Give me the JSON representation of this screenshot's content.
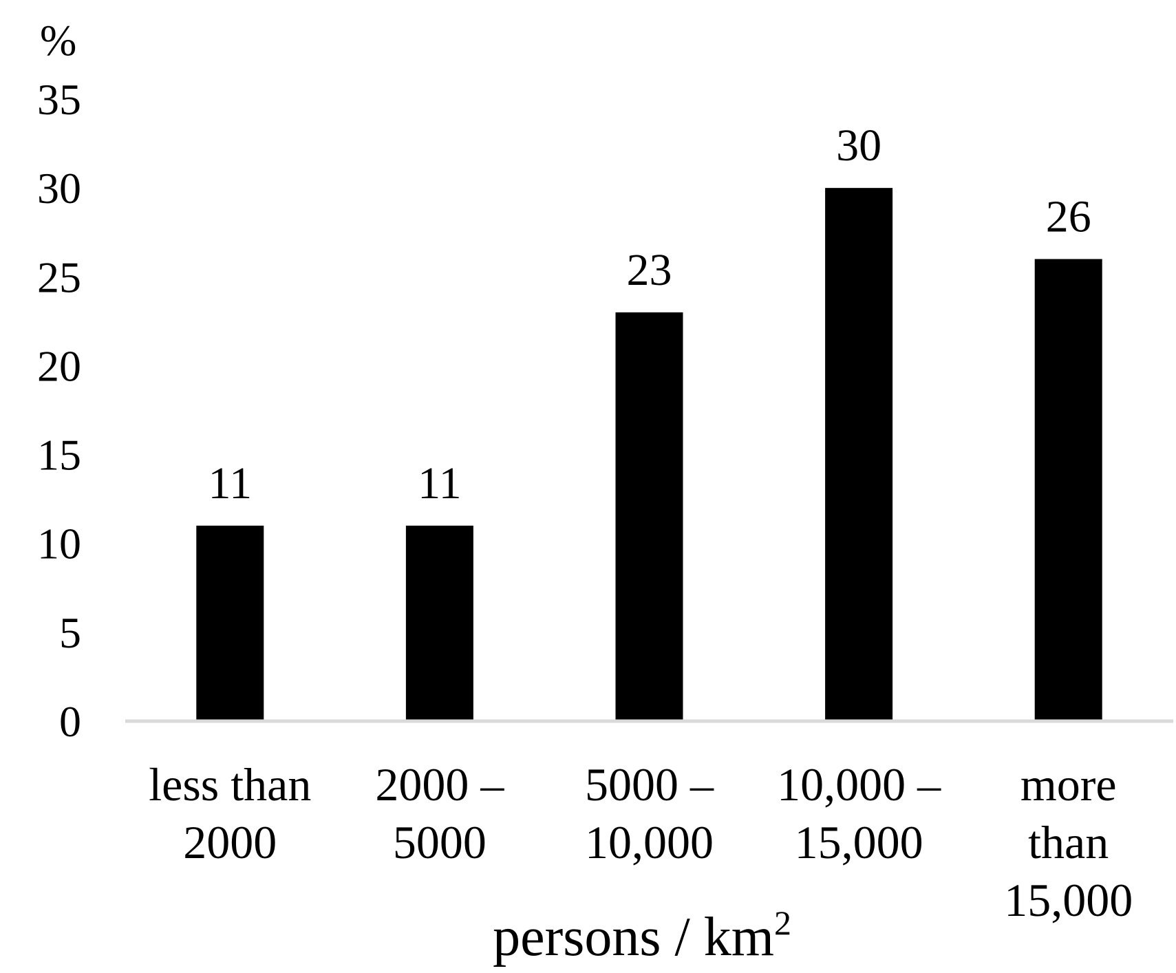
{
  "chart_data": {
    "type": "bar",
    "title": "",
    "ylabel": "%",
    "xlabel": "persons / km",
    "xlabel_superscript": "2",
    "ylim": [
      0,
      35
    ],
    "yticks": [
      0,
      5,
      10,
      15,
      20,
      25,
      30,
      35
    ],
    "categories": [
      [
        "less than",
        "2000"
      ],
      [
        "2000 –",
        "5000"
      ],
      [
        "5000 –",
        "10,000"
      ],
      [
        "10,000 –",
        "15,000"
      ],
      [
        "more",
        "than",
        "15,000"
      ]
    ],
    "values": [
      11,
      11,
      23,
      30,
      26
    ],
    "data_labels": [
      "11",
      "11",
      "23",
      "30",
      "26"
    ],
    "grid": false,
    "colors": {
      "bar": "#000000",
      "axis": "#d9d9d9"
    }
  }
}
